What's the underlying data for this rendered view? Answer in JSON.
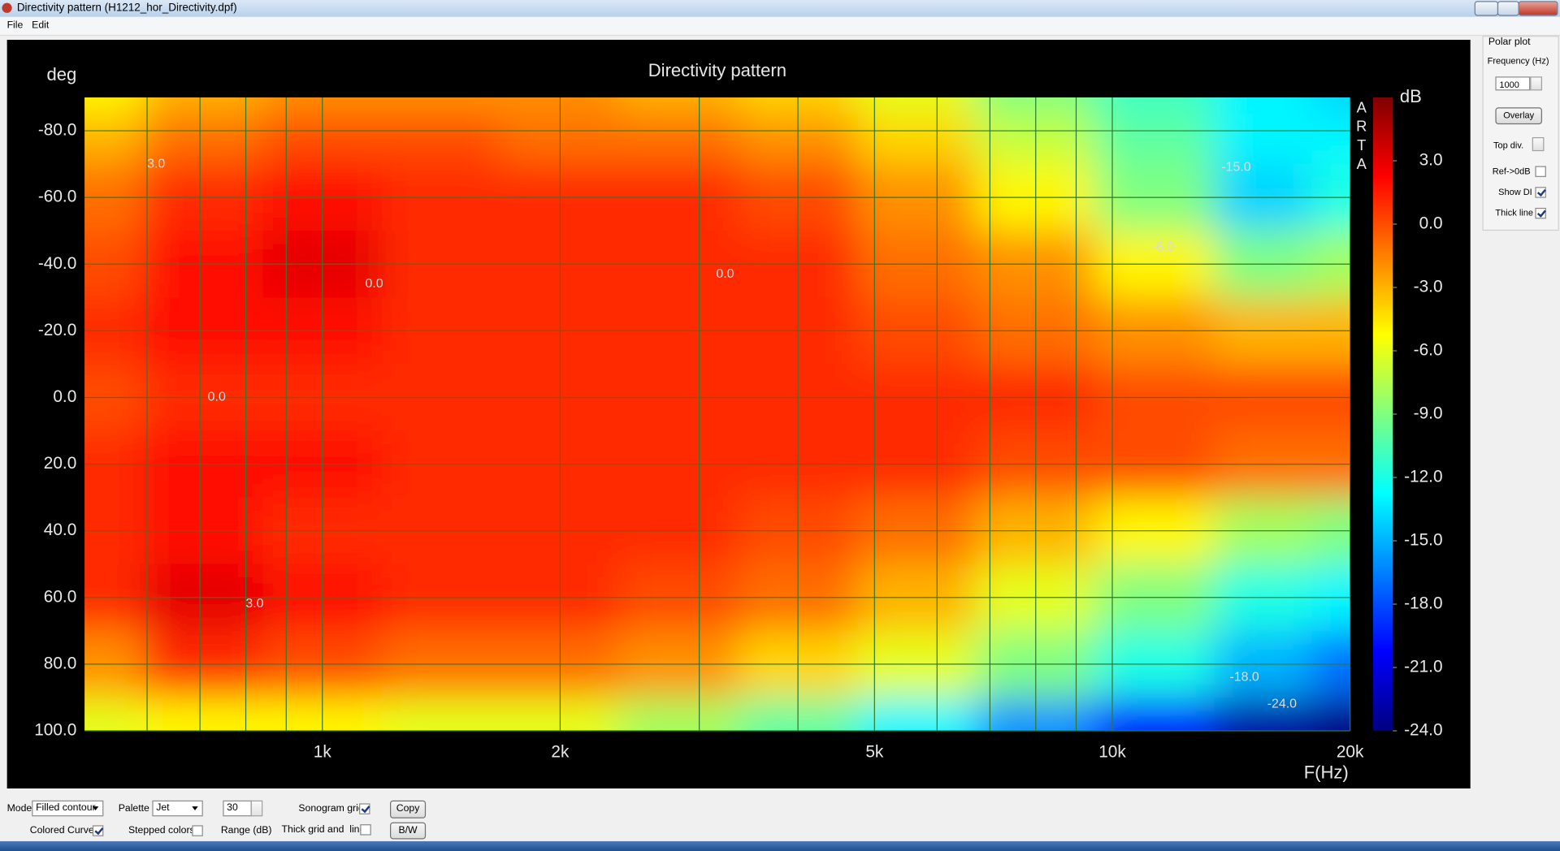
{
  "window": {
    "title": "Directivity pattern (H1212_hor_Directivity.dpf)"
  },
  "menu": [
    "File",
    "Edit"
  ],
  "chart_data": {
    "type": "heatmap",
    "title": "Directivity pattern",
    "y_label": "deg",
    "x_label": "F(Hz)",
    "watermark": "ARTA",
    "colorbar_label": "dB",
    "x": [
      500,
      707,
      1000,
      1414,
      2000,
      2828,
      4000,
      5657,
      8000,
      11314,
      16000,
      20000
    ],
    "y": [
      -90,
      -80,
      -60,
      -40,
      -20,
      0,
      20,
      40,
      60,
      80,
      100
    ],
    "values": [
      [
        -5,
        -3,
        -2,
        -2,
        -2,
        -3,
        -4,
        -6,
        -9,
        -11,
        -13,
        -14
      ],
      [
        -3,
        -1,
        0,
        0,
        -1,
        -1,
        -2,
        -4,
        -7,
        -10,
        -13,
        -13
      ],
      [
        -1,
        1,
        2,
        1,
        1,
        1,
        0,
        -2,
        -5,
        -9,
        -14,
        -12
      ],
      [
        0,
        2,
        3,
        1,
        1,
        1,
        1,
        -1,
        -2,
        -5,
        -9,
        -8
      ],
      [
        1,
        2,
        2,
        1,
        1,
        1,
        1,
        0,
        -1,
        -2,
        -3,
        -3
      ],
      [
        0,
        1,
        1,
        1,
        1,
        1,
        1,
        1,
        1,
        0,
        0,
        0
      ],
      [
        1,
        2,
        2,
        1,
        1,
        1,
        1,
        1,
        0,
        0,
        -1,
        -1
      ],
      [
        1,
        2,
        1,
        1,
        1,
        1,
        0,
        -1,
        -3,
        -5,
        -8,
        -9
      ],
      [
        1,
        3,
        2,
        1,
        1,
        0,
        -1,
        -3,
        -6,
        -9,
        -12,
        -13
      ],
      [
        -2,
        1,
        0,
        -1,
        -1,
        -2,
        -4,
        -6,
        -9,
        -12,
        -15,
        -17
      ],
      [
        -6,
        -5,
        -5,
        -6,
        -6,
        -8,
        -10,
        -13,
        -16,
        -20,
        -23,
        -24
      ]
    ],
    "xlim": [
      500,
      20000
    ],
    "xlog": true,
    "ylim": [
      -90,
      100
    ],
    "xticks": [
      {
        "value": 1000,
        "label": "1k"
      },
      {
        "value": 2000,
        "label": "2k"
      },
      {
        "value": 5000,
        "label": "5k"
      },
      {
        "value": 10000,
        "label": "10k"
      },
      {
        "value": 20000,
        "label": "20k"
      }
    ],
    "xgrid_minor": [
      600,
      700,
      800,
      900,
      3000,
      4000,
      6000,
      7000,
      8000,
      9000
    ],
    "yticks": [
      {
        "value": -80,
        "label": "-80.0"
      },
      {
        "value": -60,
        "label": "-60.0"
      },
      {
        "value": -40,
        "label": "-40.0"
      },
      {
        "value": -20,
        "label": "-20.0"
      },
      {
        "value": 0,
        "label": "0.0"
      },
      {
        "value": 20,
        "label": "20.0"
      },
      {
        "value": 40,
        "label": "40.0"
      },
      {
        "value": 60,
        "label": "60.0"
      },
      {
        "value": 80,
        "label": "80.0"
      },
      {
        "value": 100,
        "label": "100.0"
      }
    ],
    "clim": [
      -24,
      6
    ],
    "cticks": [
      {
        "value": 3,
        "label": "3.0"
      },
      {
        "value": 0,
        "label": "0.0"
      },
      {
        "value": -3,
        "label": "-3.0"
      },
      {
        "value": -6,
        "label": "-6.0"
      },
      {
        "value": -9,
        "label": "-9.0"
      },
      {
        "value": -12,
        "label": "-12.0"
      },
      {
        "value": -15,
        "label": "-15.0"
      },
      {
        "value": -18,
        "label": "-18.0"
      },
      {
        "value": -21,
        "label": "-21.0"
      },
      {
        "value": -24,
        "label": "-24.0"
      }
    ],
    "colormap": "jet",
    "grid": true,
    "grid_color": "#2f7a2f",
    "annotations": [
      {
        "text": "3.0",
        "x": 616,
        "y": -70
      },
      {
        "text": "0.0",
        "x": 1163,
        "y": -34
      },
      {
        "text": "0.0",
        "x": 3235,
        "y": -37
      },
      {
        "text": "0.0",
        "x": 735,
        "y": 0
      },
      {
        "text": "3.0",
        "x": 821,
        "y": 62
      },
      {
        "text": "-15.0",
        "x": 14350,
        "y": -69
      },
      {
        "text": "-6.0",
        "x": 11600,
        "y": -45
      },
      {
        "text": "-18.0",
        "x": 14700,
        "y": 84
      },
      {
        "text": "-24.0",
        "x": 16400,
        "y": 92
      }
    ]
  },
  "right_panel": {
    "heading": "Polar plot",
    "frequency_label": "Frequency (Hz)",
    "frequency": "1000",
    "overlay_button": "Overlay",
    "top_div_label": "Top div.",
    "ref_0db": {
      "label": "Ref->0dB",
      "checked": false
    },
    "show_di": {
      "label": "Show DI",
      "checked": true
    },
    "thick_line": {
      "label": "Thick line",
      "checked": true
    }
  },
  "bottom_panel": {
    "mode_label": "Mode",
    "mode": "Filled contour",
    "palette_label": "Palette",
    "palette": "Jet",
    "range": "30",
    "range_label": "Range (dB)",
    "sonogram_grid": {
      "label": "Sonogram grid",
      "checked": true
    },
    "copy_button": "Copy",
    "colored_curves": {
      "label": "Colored Curves",
      "checked": true
    },
    "stepped_colors": {
      "label": "Stepped colors",
      "checked": false
    },
    "thick_grid": {
      "label": "Thick grid and  lines",
      "checked": false
    },
    "bw_button": "B/W"
  }
}
